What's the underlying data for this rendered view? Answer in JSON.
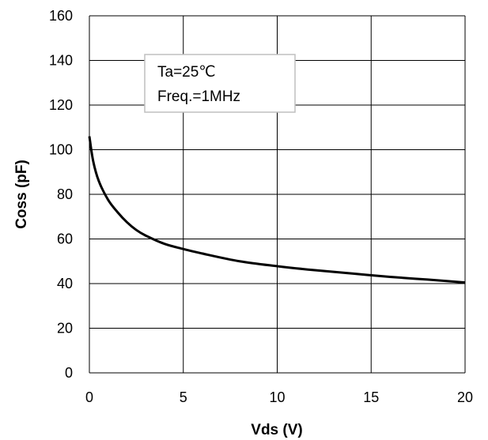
{
  "chart_data": {
    "type": "line",
    "xlabel": "Vds (V)",
    "ylabel": "Coss (pF)",
    "xlim": [
      0,
      20
    ],
    "ylim": [
      0,
      160
    ],
    "x_ticks": [
      "0",
      "5",
      "10",
      "15",
      "20"
    ],
    "y_ticks": [
      "0",
      "20",
      "40",
      "60",
      "80",
      "100",
      "120",
      "140",
      "160"
    ],
    "grid": true,
    "annotation": [
      "Ta=25℃",
      "Freq.=1MHz"
    ],
    "colors": {
      "curve": "#000000",
      "grid": "#000000",
      "annotation_border": "#bfbfbf"
    },
    "series": [
      {
        "x": [
          0,
          0.2,
          0.5,
          1,
          1.5,
          2,
          2.5,
          3,
          4,
          5,
          6,
          8,
          10,
          12,
          14,
          16,
          18,
          20
        ],
        "values": [
          106,
          95,
          86,
          77.5,
          72,
          67.5,
          64,
          61.5,
          57.8,
          55.5,
          53.5,
          50,
          47.8,
          46,
          44.5,
          43,
          41.8,
          40.5
        ]
      }
    ]
  }
}
